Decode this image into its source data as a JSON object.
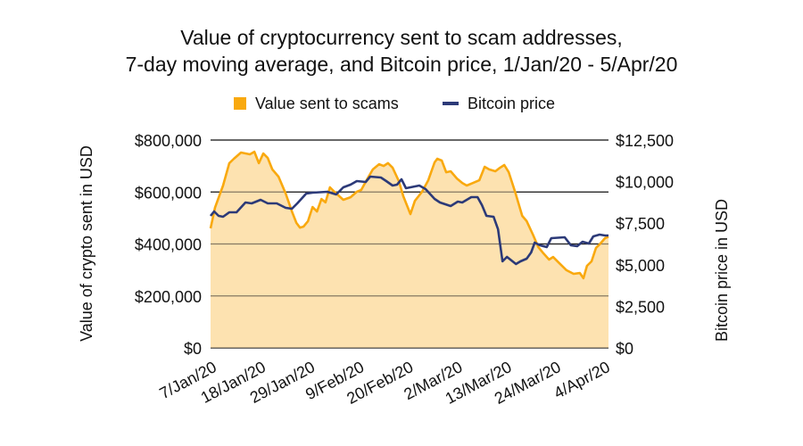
{
  "chart_data": {
    "type": "line",
    "title": [
      "Value of cryptocurrency sent to scam addresses,",
      "7-day moving average, and Bitcoin price, 1/Jan/20 - 5/Apr/20"
    ],
    "x_unit": "days since 1/Jan/20",
    "xlim": [
      6,
      95
    ],
    "x_ticks": [
      6,
      17,
      28,
      39,
      50,
      61,
      72,
      83,
      94
    ],
    "x_tick_labels": [
      "7/Jan/20",
      "18/Jan/20",
      "29/Jan/20",
      "9/Feb/20",
      "20/Feb/20",
      "2/Mar/20",
      "13/Mar/20",
      "24/Mar/20",
      "4/Apr/20"
    ],
    "ylabel": "Value of crypto sent in USD",
    "ylim": [
      0,
      800000
    ],
    "y_ticks": [
      0,
      200000,
      400000,
      600000,
      800000
    ],
    "y_tick_labels": [
      "$0",
      "$200,000",
      "$400,000",
      "$600,000",
      "$800,000"
    ],
    "y2label": "Bitcoin price in USD",
    "y2lim": [
      0,
      12500
    ],
    "y2_ticks": [
      0,
      2500,
      5000,
      7500,
      10000,
      12500
    ],
    "y2_tick_labels": [
      "$0",
      "$2,500",
      "$5,000",
      "$7,500",
      "$10,000",
      "$12,500"
    ],
    "grid": true,
    "legend_position": "top-center",
    "series": [
      {
        "name": "Value sent to scams",
        "axis": "left",
        "style": "area",
        "color": "#F9A90F",
        "fill": "#FDE2B0",
        "points": [
          [
            6,
            460000
          ],
          [
            7,
            540000
          ],
          [
            8.8,
            625000
          ],
          [
            10.2,
            711000
          ],
          [
            11.2,
            728000
          ],
          [
            12.8,
            752000
          ],
          [
            14.8,
            745000
          ],
          [
            15.8,
            755000
          ],
          [
            16.8,
            711000
          ],
          [
            17.8,
            748000
          ],
          [
            18.8,
            731000
          ],
          [
            19.8,
            687000
          ],
          [
            21.2,
            659000
          ],
          [
            22.8,
            594000
          ],
          [
            24.2,
            525000
          ],
          [
            25.2,
            481000
          ],
          [
            26,
            463000
          ],
          [
            26.8,
            467000
          ],
          [
            27.8,
            488000
          ],
          [
            28.8,
            542000
          ],
          [
            29.8,
            525000
          ],
          [
            30.8,
            573000
          ],
          [
            31.7,
            560000
          ],
          [
            32.7,
            618000
          ],
          [
            33.7,
            601000
          ],
          [
            35.7,
            570000
          ],
          [
            37.3,
            580000
          ],
          [
            38.7,
            601000
          ],
          [
            39.7,
            608000
          ],
          [
            41.1,
            652000
          ],
          [
            42.3,
            687000
          ],
          [
            43.7,
            707000
          ],
          [
            44.7,
            700000
          ],
          [
            45.7,
            711000
          ],
          [
            46.7,
            694000
          ],
          [
            48.1,
            642000
          ],
          [
            49.1,
            584000
          ],
          [
            50.7,
            515000
          ],
          [
            51.7,
            566000
          ],
          [
            53.3,
            601000
          ],
          [
            54.7,
            645000
          ],
          [
            56.1,
            714000
          ],
          [
            56.7,
            728000
          ],
          [
            57.7,
            721000
          ],
          [
            58.7,
            676000
          ],
          [
            59.7,
            680000
          ],
          [
            61.1,
            652000
          ],
          [
            62.3,
            635000
          ],
          [
            63.3,
            625000
          ],
          [
            64.7,
            635000
          ],
          [
            66.1,
            645000
          ],
          [
            67.3,
            697000
          ],
          [
            68.3,
            687000
          ],
          [
            69.7,
            680000
          ],
          [
            70.7,
            693000
          ],
          [
            71.7,
            704000
          ],
          [
            72.7,
            676000
          ],
          [
            74.1,
            601000
          ],
          [
            75.7,
            508000
          ],
          [
            76.7,
            488000
          ],
          [
            78.1,
            436000
          ],
          [
            79.3,
            388000
          ],
          [
            80.3,
            367000
          ],
          [
            81.7,
            340000
          ],
          [
            82.6,
            350000
          ],
          [
            84,
            326000
          ],
          [
            85.6,
            299000
          ],
          [
            87.2,
            285000
          ],
          [
            88.6,
            288000
          ],
          [
            89.4,
            268000
          ],
          [
            90.2,
            316000
          ],
          [
            91.2,
            333000
          ],
          [
            92.2,
            385000
          ],
          [
            93.2,
            402000
          ],
          [
            94.2,
            422000
          ],
          [
            95,
            428000
          ]
        ]
      },
      {
        "name": "Bitcoin price",
        "axis": "right",
        "style": "line",
        "color": "#2C3A78",
        "points": [
          [
            6,
            7940
          ],
          [
            6.8,
            8208
          ],
          [
            7.8,
            7940
          ],
          [
            8.8,
            7887
          ],
          [
            10.2,
            8155
          ],
          [
            11.8,
            8155
          ],
          [
            13.8,
            8745
          ],
          [
            15.2,
            8691
          ],
          [
            17.2,
            8906
          ],
          [
            18.8,
            8691
          ],
          [
            20.8,
            8691
          ],
          [
            22.8,
            8423
          ],
          [
            24.2,
            8369
          ],
          [
            25.4,
            8691
          ],
          [
            27.4,
            9281
          ],
          [
            28.8,
            9335
          ],
          [
            32.1,
            9389
          ],
          [
            34.1,
            9228
          ],
          [
            35.7,
            9657
          ],
          [
            37.3,
            9818
          ],
          [
            38.7,
            10033
          ],
          [
            40.7,
            9979
          ],
          [
            41.7,
            10301
          ],
          [
            44.1,
            10247
          ],
          [
            45.3,
            10033
          ],
          [
            46.7,
            9765
          ],
          [
            47.7,
            9818
          ],
          [
            48.7,
            10140
          ],
          [
            49.7,
            9603
          ],
          [
            52.7,
            9765
          ],
          [
            54.1,
            9550
          ],
          [
            56.1,
            8960
          ],
          [
            57.3,
            8745
          ],
          [
            59.7,
            8530
          ],
          [
            61.3,
            8799
          ],
          [
            62.3,
            8745
          ],
          [
            64.3,
            9067
          ],
          [
            65.7,
            9067
          ],
          [
            66.7,
            8584
          ],
          [
            67.7,
            7940
          ],
          [
            69.3,
            7887
          ],
          [
            70.3,
            7136
          ],
          [
            71.3,
            5204
          ],
          [
            72.3,
            5472
          ],
          [
            74.3,
            5043
          ],
          [
            75.3,
            5204
          ],
          [
            76.7,
            5365
          ],
          [
            77.7,
            5741
          ],
          [
            78.5,
            6331
          ],
          [
            79.7,
            6170
          ],
          [
            81.2,
            6062
          ],
          [
            82.2,
            6599
          ],
          [
            85.2,
            6653
          ],
          [
            86.6,
            6170
          ],
          [
            88,
            6116
          ],
          [
            89.2,
            6384
          ],
          [
            90.6,
            6277
          ],
          [
            91.6,
            6706
          ],
          [
            93,
            6814
          ],
          [
            94.2,
            6760
          ],
          [
            95,
            6760
          ]
        ]
      }
    ]
  }
}
